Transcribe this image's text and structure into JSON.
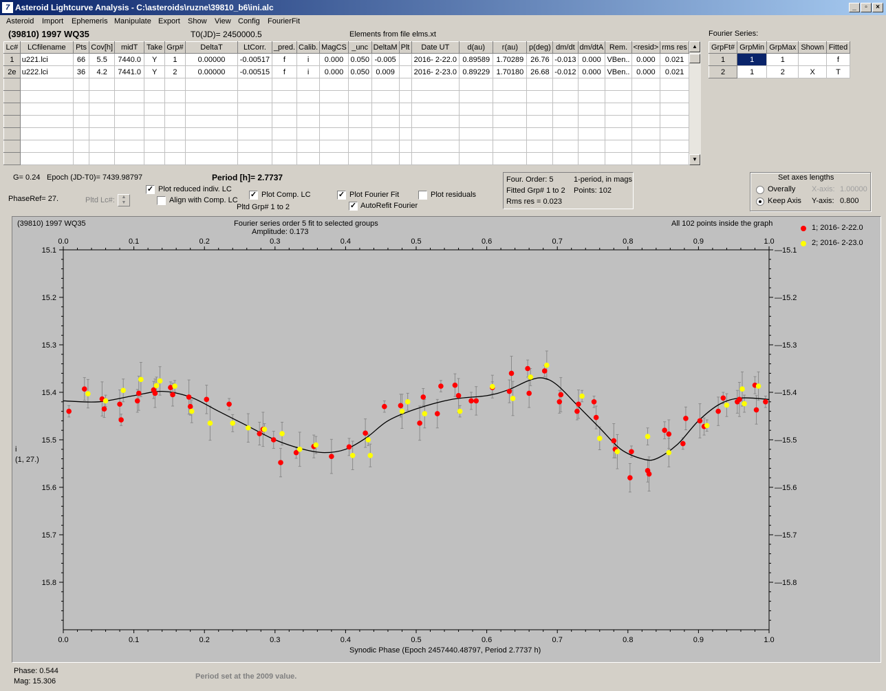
{
  "window": {
    "title": "Asteroid Lightcurve Analysis - C:\\asteroids\\ruzne\\39810_b6\\ini.alc",
    "icon": "alc-app-icon",
    "controls": [
      "_",
      "̸",
      "X"
    ]
  },
  "menu": [
    "Asteroid",
    "Import",
    "Ephemeris",
    "Manipulate",
    "Export",
    "Show",
    "View",
    "Config",
    "FourierFit"
  ],
  "header": {
    "asteroid_name": "(39810) 1997 WQ35",
    "t0": "T0(JD)= 2450000.5",
    "elements": "Elements from file elms.xt"
  },
  "lc_table": {
    "columns": [
      "Lc#",
      "LCfilename",
      "Pts",
      "Cov[h]",
      "midT",
      "Take",
      "Grp#",
      "DeltaT",
      "LtCorr.",
      "_pred.",
      "Calib.",
      "MagCS",
      "_unc",
      "DeltaM",
      "Plt",
      "Date UT",
      "d(au)",
      "r(au)",
      "p(deg)",
      "dm/dt",
      "dm/dtA",
      "Rem.",
      "<resid>",
      "rms res"
    ],
    "rows": [
      [
        "1",
        "u221.lci",
        "66",
        "5.5",
        "7440.0",
        "Y",
        "1",
        "0.00000",
        "-0.00517",
        "f",
        "i",
        "0.000",
        "0.050",
        "-0.005",
        "",
        "2016- 2-22.0",
        "0.89589",
        "1.70289",
        "26.76",
        "-0.013",
        "0.000",
        "VBen..",
        "0.000",
        "0.021"
      ],
      [
        "2e",
        "u222.lci",
        "36",
        "4.2",
        "7441.0",
        "Y",
        "2",
        "0.00000",
        "-0.00515",
        "f",
        "i",
        "0.000",
        "0.050",
        "0.009",
        "",
        "2016- 2-23.0",
        "0.89229",
        "1.70180",
        "26.68",
        "-0.012",
        "0.000",
        "VBen..",
        "0.000",
        "0.021"
      ]
    ],
    "empty_rows": 7
  },
  "fourier_series": {
    "title": "Fourier Series:",
    "columns": [
      "GrpFt#",
      "GrpMin",
      "GrpMax",
      "Shown",
      "Fitted"
    ],
    "rows": [
      [
        "1",
        "1",
        "1",
        "",
        "f"
      ],
      [
        "2",
        "1",
        "2",
        "X",
        "T"
      ]
    ]
  },
  "controls": {
    "g": "G= 0.24",
    "epoch": "Epoch (JD-T0)= 7439.98797",
    "period": "Period [h]= 2.7737",
    "phaseref": "PhaseRef= 27.",
    "pltd_lc": "Pltd Lc#:",
    "plot_reduced": "Plot reduced indiv. LC",
    "align_comp": "Align with Comp. LC",
    "plot_comp": "Plot Comp. LC",
    "pltd_grp": "Pltd Grp#  1   to   2",
    "plot_fourier": "Plot Fourier Fit",
    "autorefit": "AutoRefit Fourier",
    "plot_residuals": "Plot residuals",
    "checks": {
      "plot_reduced": true,
      "align_comp": false,
      "plot_comp": true,
      "plot_fourier": true,
      "autorefit": true,
      "plot_residuals": false
    }
  },
  "fit_info": {
    "order": "Four. Order:  5",
    "mode": "1-period, in mags",
    "fitted": "Fitted Grp# 1 to 2",
    "points": "Points: 102",
    "rms": "Rms res     = 0.023"
  },
  "axes_box": {
    "title": "Set axes lengths",
    "overally": "Overally",
    "keep_axis": "Keep Axis",
    "xaxis_label": "X-axis:",
    "xaxis_value": "1.00000",
    "yaxis_label": "Y-axis:",
    "yaxis_value": "0.800",
    "selected": "keep_axis"
  },
  "plot": {
    "top_left": "(39810) 1997 WQ35",
    "top_center": "Fourier series order 5 fit to selected groups",
    "amplitude": "Amplitude: 0.173",
    "top_right": "All 102 points inside the graph",
    "ylabel_1": "i",
    "ylabel_2": "(1, 27.)",
    "xlabel": "Synodic Phase (Epoch 2457440.48797, Period 2.7737 h)",
    "legend": [
      {
        "label": "1; 2016- 2-22.0",
        "color": "#ff0000"
      },
      {
        "label": "2; 2016- 2-23.0",
        "color": "#ffff00"
      }
    ]
  },
  "status": {
    "phase": "Phase:  0.544",
    "mag": "Mag:    15.306",
    "message": "Period set at the 2009 value."
  },
  "chart_data": {
    "type": "scatter",
    "title": "Fourier series order 5 fit to selected groups",
    "xlabel": "Synodic Phase (Epoch 2457440.48797, Period 2.7737 h)",
    "ylabel": "i",
    "xlim": [
      0.0,
      1.0
    ],
    "ylim": [
      15.1,
      15.9
    ],
    "y_inverted": true,
    "x_ticks": [
      "0.0",
      "0.1",
      "0.2",
      "0.3",
      "0.4",
      "0.5",
      "0.6",
      "0.7",
      "0.8",
      "0.9",
      "1.0"
    ],
    "y_ticks": [
      "15.1",
      "15.2",
      "15.3",
      "15.4",
      "15.5",
      "15.6",
      "15.7",
      "15.8"
    ],
    "series": [
      {
        "name": "1; 2016- 2-22.0",
        "color": "#ff0000",
        "points": [
          [
            0.008,
            15.44
          ],
          [
            0.03,
            15.393
          ],
          [
            0.055,
            15.414
          ],
          [
            0.058,
            15.435
          ],
          [
            0.08,
            15.425
          ],
          [
            0.082,
            15.458
          ],
          [
            0.105,
            15.418
          ],
          [
            0.107,
            15.402
          ],
          [
            0.128,
            15.395
          ],
          [
            0.13,
            15.402
          ],
          [
            0.152,
            15.39
          ],
          [
            0.155,
            15.405
          ],
          [
            0.178,
            15.41
          ],
          [
            0.18,
            15.43
          ],
          [
            0.203,
            15.415
          ],
          [
            0.235,
            15.425
          ],
          [
            0.278,
            15.487
          ],
          [
            0.283,
            15.478
          ],
          [
            0.298,
            15.5
          ],
          [
            0.308,
            15.548
          ],
          [
            0.33,
            15.527
          ],
          [
            0.355,
            15.514
          ],
          [
            0.38,
            15.535
          ],
          [
            0.405,
            15.515
          ],
          [
            0.428,
            15.486
          ],
          [
            0.455,
            15.43
          ],
          [
            0.478,
            15.428
          ],
          [
            0.505,
            15.465
          ],
          [
            0.51,
            15.41
          ],
          [
            0.53,
            15.445
          ],
          [
            0.535,
            15.387
          ],
          [
            0.555,
            15.385
          ],
          [
            0.56,
            15.407
          ],
          [
            0.578,
            15.418
          ],
          [
            0.585,
            15.418
          ],
          [
            0.608,
            15.39
          ],
          [
            0.632,
            15.398
          ],
          [
            0.635,
            15.36
          ],
          [
            0.658,
            15.35
          ],
          [
            0.66,
            15.402
          ],
          [
            0.682,
            15.355
          ],
          [
            0.703,
            15.42
          ],
          [
            0.705,
            15.405
          ],
          [
            0.728,
            15.44
          ],
          [
            0.73,
            15.425
          ],
          [
            0.752,
            15.42
          ],
          [
            0.755,
            15.453
          ],
          [
            0.78,
            15.502
          ],
          [
            0.782,
            15.52
          ],
          [
            0.803,
            15.58
          ],
          [
            0.805,
            15.525
          ],
          [
            0.828,
            15.565
          ],
          [
            0.83,
            15.572
          ],
          [
            0.852,
            15.48
          ],
          [
            0.858,
            15.488
          ],
          [
            0.878,
            15.508
          ],
          [
            0.882,
            15.455
          ],
          [
            0.902,
            15.46
          ],
          [
            0.908,
            15.472
          ],
          [
            0.928,
            15.44
          ],
          [
            0.935,
            15.412
          ],
          [
            0.955,
            15.42
          ],
          [
            0.958,
            15.415
          ],
          [
            0.98,
            15.385
          ],
          [
            0.982,
            15.437
          ],
          [
            0.995,
            15.42
          ]
        ]
      },
      {
        "name": "2; 2016- 2-23.0",
        "color": "#ffff00",
        "points": [
          [
            0.035,
            15.403
          ],
          [
            0.06,
            15.418
          ],
          [
            0.085,
            15.396
          ],
          [
            0.11,
            15.373
          ],
          [
            0.132,
            15.386
          ],
          [
            0.137,
            15.376
          ],
          [
            0.158,
            15.387
          ],
          [
            0.182,
            15.44
          ],
          [
            0.208,
            15.465
          ],
          [
            0.24,
            15.465
          ],
          [
            0.262,
            15.475
          ],
          [
            0.285,
            15.478
          ],
          [
            0.31,
            15.487
          ],
          [
            0.335,
            15.52
          ],
          [
            0.358,
            15.511
          ],
          [
            0.41,
            15.533
          ],
          [
            0.432,
            15.5
          ],
          [
            0.435,
            15.533
          ],
          [
            0.48,
            15.44
          ],
          [
            0.488,
            15.42
          ],
          [
            0.512,
            15.445
          ],
          [
            0.562,
            15.44
          ],
          [
            0.608,
            15.388
          ],
          [
            0.637,
            15.413
          ],
          [
            0.662,
            15.368
          ],
          [
            0.685,
            15.343
          ],
          [
            0.735,
            15.408
          ],
          [
            0.76,
            15.497
          ],
          [
            0.785,
            15.525
          ],
          [
            0.828,
            15.493
          ],
          [
            0.858,
            15.527
          ],
          [
            0.912,
            15.47
          ],
          [
            0.94,
            15.427
          ],
          [
            0.962,
            15.393
          ],
          [
            0.965,
            15.424
          ],
          [
            0.985,
            15.387
          ]
        ]
      }
    ],
    "fit_curve": [
      [
        0.0,
        15.418
      ],
      [
        0.05,
        15.42
      ],
      [
        0.1,
        15.407
      ],
      [
        0.14,
        15.398
      ],
      [
        0.18,
        15.41
      ],
      [
        0.22,
        15.44
      ],
      [
        0.26,
        15.47
      ],
      [
        0.3,
        15.5
      ],
      [
        0.34,
        15.52
      ],
      [
        0.37,
        15.527
      ],
      [
        0.4,
        15.52
      ],
      [
        0.43,
        15.495
      ],
      [
        0.46,
        15.46
      ],
      [
        0.5,
        15.435
      ],
      [
        0.55,
        15.415
      ],
      [
        0.6,
        15.407
      ],
      [
        0.63,
        15.395
      ],
      [
        0.66,
        15.375
      ],
      [
        0.68,
        15.37
      ],
      [
        0.7,
        15.385
      ],
      [
        0.73,
        15.43
      ],
      [
        0.76,
        15.475
      ],
      [
        0.79,
        15.52
      ],
      [
        0.82,
        15.54
      ],
      [
        0.84,
        15.54
      ],
      [
        0.87,
        15.51
      ],
      [
        0.9,
        15.46
      ],
      [
        0.93,
        15.425
      ],
      [
        0.96,
        15.412
      ],
      [
        1.0,
        15.415
      ]
    ]
  }
}
